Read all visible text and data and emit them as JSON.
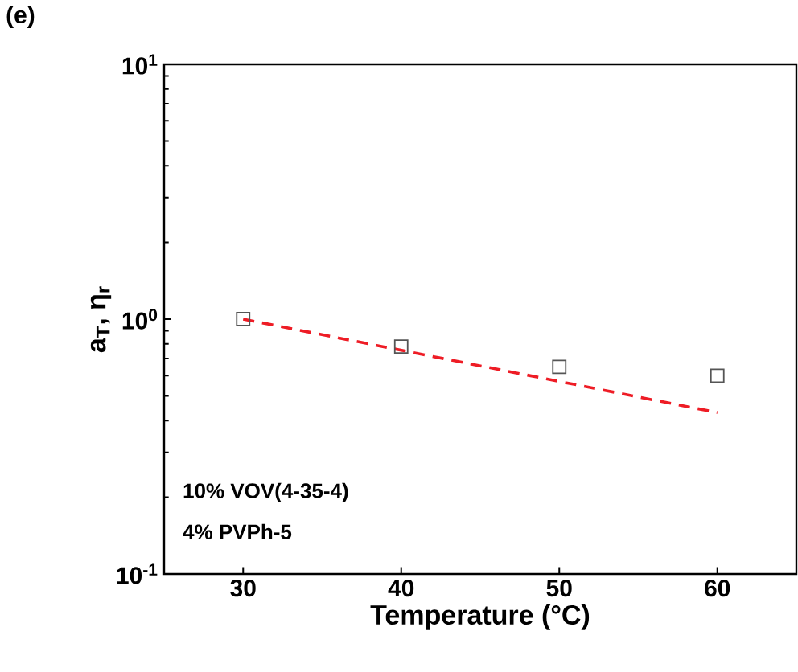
{
  "chart_data": {
    "type": "scatter",
    "xlabel": "Temperature (°C)",
    "ylabel": "a$_{T}$, η$_{r}$",
    "annotations": [
      "(e)",
      "10% VOV(4-35-4)",
      "4% PVPh-5"
    ],
    "log": "y",
    "grid": false,
    "xlim": [
      25,
      65
    ],
    "xticks": [
      30,
      40,
      50,
      60
    ],
    "ylim": [
      0.1,
      10
    ],
    "yticks": [
      {
        "value": 0.1,
        "label": "10$^{-1}$"
      },
      {
        "value": 1,
        "label": "10$^{0}$"
      },
      {
        "value": 10,
        "label": "10$^{1}$"
      }
    ],
    "series": [
      {
        "marker": "square",
        "color": "#555555",
        "x": [
          30,
          40,
          50,
          60
        ],
        "values": [
          1.0,
          0.78,
          0.65,
          0.6
        ]
      },
      {
        "type": "line",
        "marker": "none",
        "line_style": "dashed",
        "color": "#ee1c25",
        "x": [
          30,
          60
        ],
        "values": [
          1.0,
          0.43
        ]
      }
    ]
  }
}
